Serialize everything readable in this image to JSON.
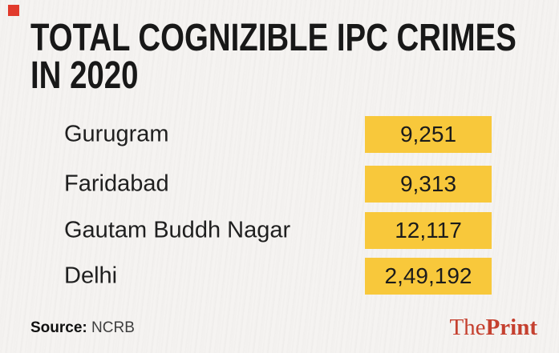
{
  "title": {
    "line1": "TOTAL COGNIZIBLE IPC CRIMES",
    "line2": "IN 2020"
  },
  "rows": [
    {
      "label": "Gurugram",
      "value": "9,251"
    },
    {
      "label": "Faridabad",
      "value": "9,313"
    },
    {
      "label": "Gautam Buddh Nagar",
      "value": "12,117"
    },
    {
      "label": "Delhi",
      "value": "2,49,192"
    }
  ],
  "footer": {
    "source_label": "Source:",
    "source_value": "NCRB",
    "brand_the": "The",
    "brand_print": "Print"
  },
  "colors": {
    "background": "#f5f3f1",
    "value_box_yellow": "#f8c83b",
    "brand_red": "#c5402f",
    "corner_square_red": "#e13a2c",
    "title_text": "#181818",
    "body_text": "#1f1f1f"
  },
  "chart_data": {
    "type": "table",
    "title": "TOTAL COGNIZIBLE IPC CRIMES IN 2020",
    "categories": [
      "Gurugram",
      "Faridabad",
      "Gautam Buddh Nagar",
      "Delhi"
    ],
    "values": [
      9251,
      9313,
      12117,
      249192
    ],
    "value_labels": [
      "9,251",
      "9,313",
      "12,117",
      "2,49,192"
    ],
    "source": "NCRB",
    "legend": false,
    "notes": "Values shown in yellow boxes of equal width (Indian digit grouping), not proportional bars"
  }
}
